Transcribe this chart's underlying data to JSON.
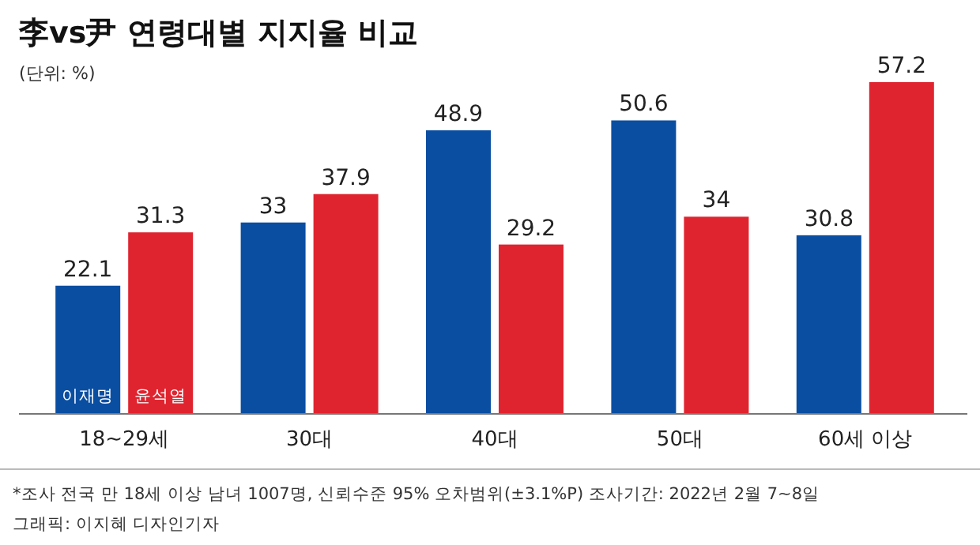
{
  "chart_data": {
    "type": "bar",
    "title": "李vs尹 연령대별 지지율 비교",
    "subtitle": "(단위: %)",
    "categories": [
      "18~29세",
      "30대",
      "40대",
      "50대",
      "60세 이상"
    ],
    "series": [
      {
        "name": "이재명",
        "color": "#0a4ea2",
        "values": [
          22.1,
          33,
          48.9,
          50.6,
          30.8
        ]
      },
      {
        "name": "윤석열",
        "color": "#e0242f",
        "values": [
          31.3,
          37.9,
          29.2,
          34,
          57.2
        ]
      }
    ],
    "data_labels": true,
    "annotations": [
      "*조사 전국 만 18세 이상 남녀 1007명, 신뢰수준 95% 오차범위(±3.1%P) 조사기간: 2022년 2월 7~8일",
      "그래픽: 이지혜 디자인기자"
    ]
  }
}
